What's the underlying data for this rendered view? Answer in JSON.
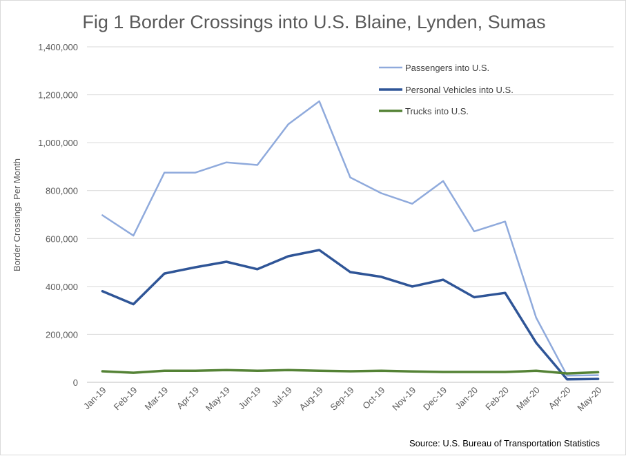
{
  "chart_data": {
    "type": "line",
    "title": "Fig 1 Border Crossings into U.S. Blaine, Lynden, Sumas",
    "xlabel": "",
    "ylabel": "Border Crossings Per Month",
    "source": "Source: U.S. Bureau of Transportation Statistics",
    "ylim": [
      0,
      1400000
    ],
    "y_ticks": [
      0,
      200000,
      400000,
      600000,
      800000,
      1000000,
      1200000,
      1400000
    ],
    "y_tick_labels": [
      "0",
      "200,000",
      "400,000",
      "600,000",
      "800,000",
      "1,000,000",
      "1,200,000",
      "1,400,000"
    ],
    "grid": true,
    "legend_position": "top-right",
    "categories": [
      "Jan-19",
      "Feb-19",
      "Mar-19",
      "Apr-19",
      "May-19",
      "Jun-19",
      "Jul-19",
      "Aug-19",
      "Sep-19",
      "Oct-19",
      "Nov-19",
      "Dec-19",
      "Jan-20",
      "Feb-20",
      "Mar-20",
      "Apr-20",
      "May-20"
    ],
    "series": [
      {
        "name": "Passengers into U.S.",
        "color": "#8faadc",
        "values": [
          697000,
          612000,
          875000,
          875000,
          918000,
          907000,
          1077000,
          1173000,
          855000,
          789000,
          745000,
          840000,
          630000,
          671000,
          270000,
          28000,
          30000
        ]
      },
      {
        "name": "Personal Vehicles into U.S.",
        "color": "#2f5597",
        "values": [
          380000,
          326000,
          454000,
          480000,
          503000,
          472000,
          526000,
          552000,
          460000,
          440000,
          400000,
          428000,
          355000,
          373000,
          165000,
          12000,
          14000
        ]
      },
      {
        "name": "Trucks into U.S.",
        "color": "#548235",
        "values": [
          46000,
          40000,
          48000,
          48000,
          51000,
          48000,
          51000,
          48000,
          46000,
          48000,
          45000,
          43000,
          43000,
          43000,
          48000,
          37000,
          42000
        ]
      }
    ]
  }
}
